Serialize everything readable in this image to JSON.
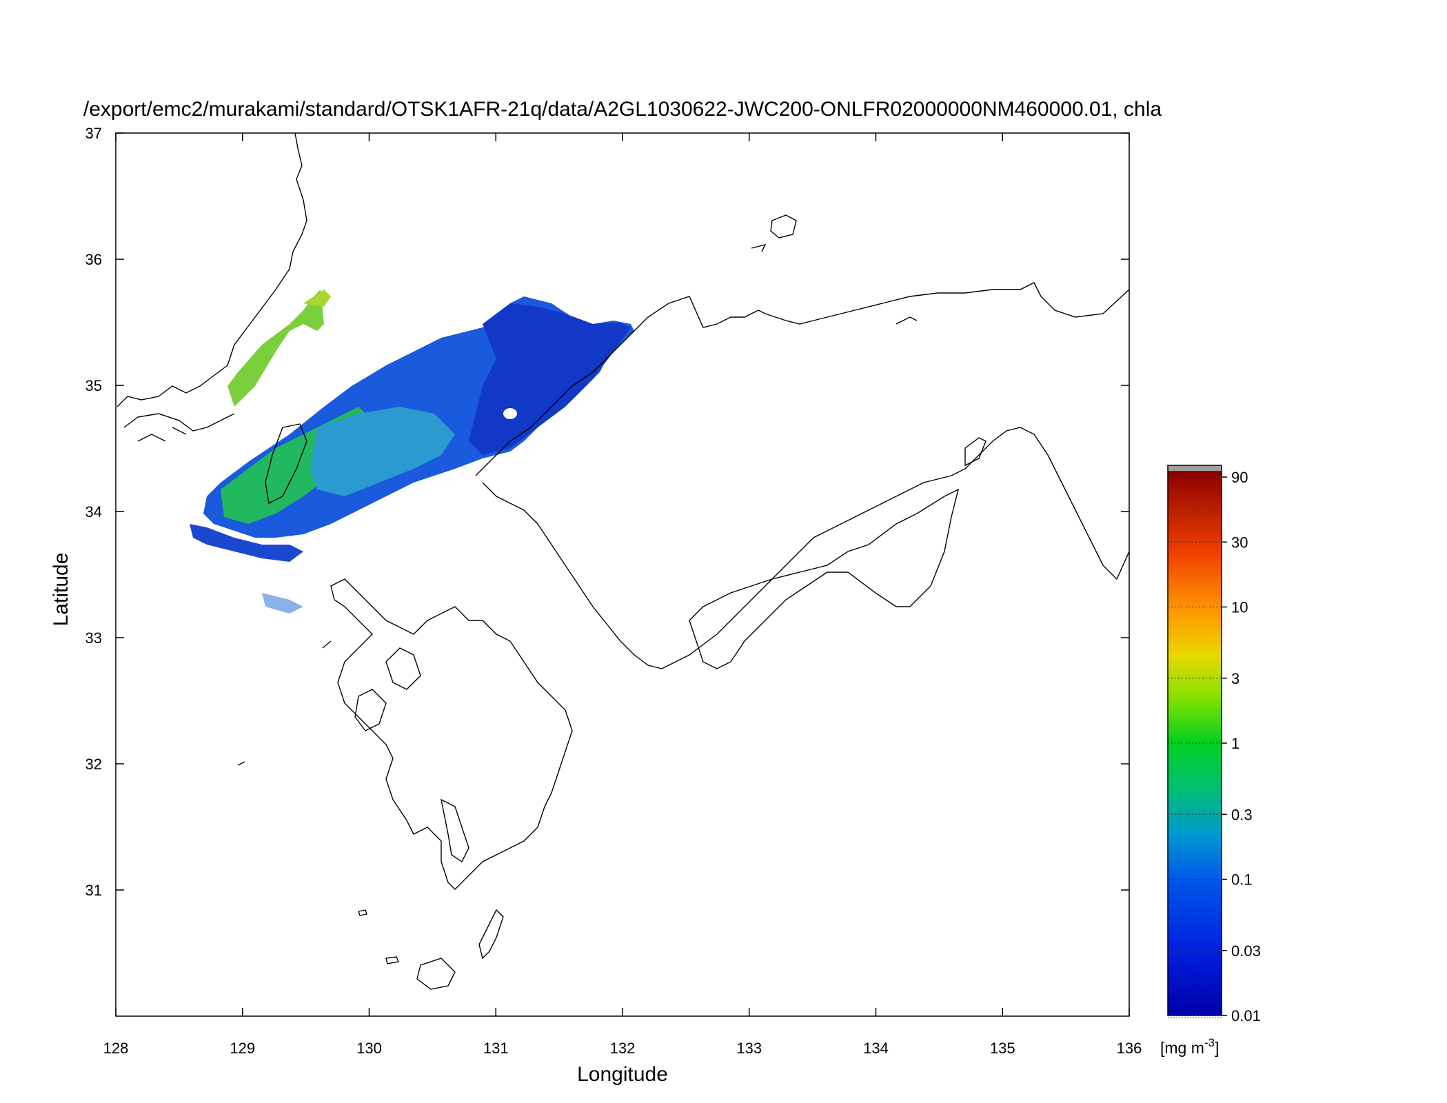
{
  "title": "/export/emc2/murakami/standard/OTSK1AFR-21q/data/A2GL1030622-JWC200-ONLFR02000000NM460000.01, chla",
  "x_axis": {
    "label": "Longitude",
    "range": [
      128,
      136
    ],
    "ticks": [
      "128",
      "129",
      "130",
      "131",
      "132",
      "133",
      "134",
      "135",
      "136"
    ]
  },
  "y_axis": {
    "label": "Latitude",
    "range": [
      30,
      37
    ],
    "ticks": [
      "31",
      "32",
      "33",
      "34",
      "35",
      "36",
      "37"
    ]
  },
  "colorbar": {
    "unit_prefix": "[mg m",
    "unit_exponent": "-3",
    "unit_suffix": "]",
    "scale": "log",
    "range": [
      0.01,
      100
    ],
    "tick_labels": [
      "0.01",
      "0.03",
      "0.1",
      "0.3",
      "1",
      "3",
      "10",
      "30",
      "90"
    ],
    "tick_values": [
      0.01,
      0.03,
      0.1,
      0.3,
      1,
      3,
      10,
      30,
      90
    ],
    "top_cap_color": "#a0a0a0",
    "colors": [
      "#0000b4",
      "#0040ff",
      "#009cd2",
      "#00d020",
      "#a8e000",
      "#f0d000",
      "#ff8000",
      "#e83000",
      "#900000"
    ]
  },
  "chart_data": {
    "type": "heatmap",
    "variable": "chla",
    "x_range": [
      128,
      136
    ],
    "y_range": [
      30,
      37
    ],
    "value_scale": "log",
    "value_range": [
      0.01,
      100
    ]
  }
}
